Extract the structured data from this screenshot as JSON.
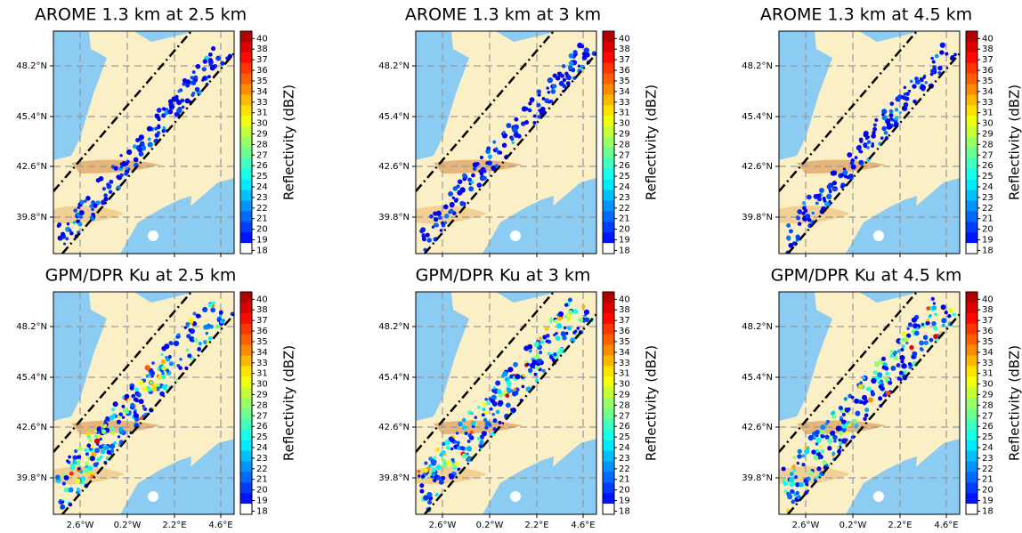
{
  "panels": [
    {
      "title": "AROME 1.3 km at 2.5 km"
    },
    {
      "title": "AROME 1.3 km at 3 km"
    },
    {
      "title": "AROME 1.3 km at 4.5 km"
    },
    {
      "title": "GPM/DPR Ku at 2.5 km"
    },
    {
      "title": "GPM/DPR Ku at 3 km"
    },
    {
      "title": "GPM/DPR Ku at 4.5 km"
    }
  ],
  "lat_labels": [
    "48.2°N",
    "45.4°N",
    "42.6°N",
    "39.8°N"
  ],
  "lon_labels": [
    "2.6°W",
    "0.2°W",
    "2.2°E",
    "4.6°E"
  ],
  "colorbar": {
    "label": "Reflectivity (dBZ)",
    "ticks": [
      40,
      38,
      37,
      36,
      35,
      34,
      33,
      31,
      30,
      29,
      28,
      27,
      26,
      25,
      24,
      23,
      22,
      21,
      20,
      19,
      18
    ]
  }
}
